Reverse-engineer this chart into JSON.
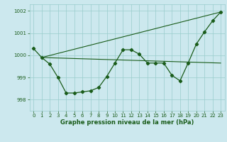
{
  "xlabel": "Graphe pression niveau de la mer (hPa)",
  "xlim": [
    -0.5,
    23.5
  ],
  "ylim": [
    997.5,
    1002.3
  ],
  "yticks": [
    998,
    999,
    1000,
    1001,
    1002
  ],
  "xticks": [
    0,
    1,
    2,
    3,
    4,
    5,
    6,
    7,
    8,
    9,
    10,
    11,
    12,
    13,
    14,
    15,
    16,
    17,
    18,
    19,
    20,
    21,
    22,
    23
  ],
  "background_color": "#cce8ee",
  "grid_color": "#99cccc",
  "line_color": "#1a5c1a",
  "line1_x": [
    0,
    1,
    2,
    3,
    4,
    5,
    6,
    7,
    8,
    9,
    10,
    11,
    12,
    13,
    14,
    15,
    16,
    17,
    18,
    19,
    20,
    21,
    22,
    23
  ],
  "line1_y": [
    1000.3,
    999.9,
    999.6,
    999.0,
    998.3,
    998.3,
    998.35,
    998.4,
    998.55,
    999.05,
    999.65,
    1000.25,
    1000.25,
    1000.05,
    999.65,
    999.65,
    999.65,
    999.1,
    998.85,
    999.65,
    1000.5,
    1001.05,
    1001.55,
    1001.95
  ],
  "line2_x": [
    1,
    23
  ],
  "line2_y": [
    999.9,
    999.65
  ],
  "line3_x": [
    1,
    23
  ],
  "line3_y": [
    999.9,
    1001.95
  ],
  "marker": "D",
  "marker_size": 2.2,
  "lw_main": 0.9,
  "lw_ref": 0.8,
  "tick_fontsize": 5.0,
  "label_fontsize": 6.0
}
